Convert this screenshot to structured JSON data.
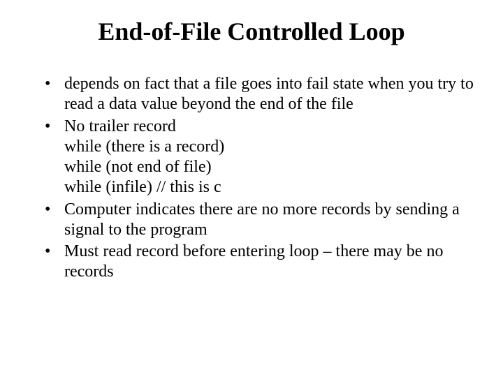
{
  "title": "End-of-File Controlled Loop",
  "bullets": {
    "b1": {
      "text": "depends on fact that a file goes into fail state when you try to read a data value beyond the end of the file"
    },
    "b2": {
      "line1": "No trailer record",
      "line2": "while (there is a record)",
      "line3": "while (not end of file)",
      "line4": "while (infile)  // this is c"
    },
    "b3": {
      "text": "Computer indicates there are no more records by sending a signal to the program"
    },
    "b4": {
      "text": "Must read record before entering loop – there may be no records"
    }
  }
}
